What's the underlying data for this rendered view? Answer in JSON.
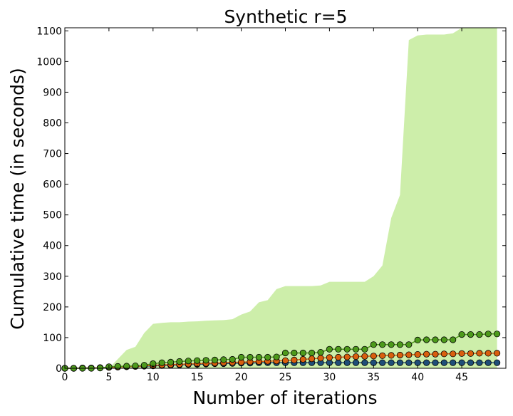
{
  "chart_data": {
    "type": "line",
    "title": "Synthetic r=5",
    "xlabel": "Number of iterations",
    "ylabel": "Cumulative time (in seconds)",
    "xlim": [
      0,
      50
    ],
    "ylim": [
      0,
      1110
    ],
    "xticks": [
      0,
      5,
      10,
      15,
      20,
      25,
      30,
      35,
      40,
      45
    ],
    "yticks": [
      0,
      100,
      200,
      300,
      400,
      500,
      600,
      700,
      800,
      900,
      1000,
      1100
    ],
    "grid": false,
    "legend": "none",
    "x": [
      0,
      1,
      2,
      3,
      4,
      5,
      6,
      7,
      8,
      9,
      10,
      11,
      12,
      13,
      14,
      15,
      16,
      17,
      18,
      19,
      20,
      21,
      22,
      23,
      24,
      25,
      26,
      27,
      28,
      29,
      30,
      31,
      32,
      33,
      34,
      35,
      36,
      37,
      38,
      39,
      40,
      41,
      42,
      43,
      44,
      45,
      46,
      47,
      48,
      49
    ],
    "series": [
      {
        "color": "#1f4e79",
        "values": [
          0,
          0,
          1,
          1,
          2,
          3,
          4,
          5,
          6,
          7,
          8,
          9,
          10,
          11,
          12,
          13,
          14,
          15,
          15,
          16,
          17,
          17,
          18,
          18,
          18,
          18,
          18,
          18,
          18,
          18,
          18,
          18,
          18,
          18,
          18,
          18,
          18,
          18,
          18,
          18,
          18,
          18,
          18,
          18,
          18,
          18,
          18,
          18,
          18,
          18
        ]
      },
      {
        "color": "#d95f0e",
        "values": [
          0,
          0,
          1,
          1,
          2,
          3,
          4,
          5,
          6,
          8,
          10,
          11,
          12,
          13,
          14,
          15,
          16,
          17,
          18,
          19,
          20,
          21,
          22,
          23,
          24,
          25,
          27,
          29,
          31,
          33,
          35,
          36,
          37,
          38,
          39,
          40,
          41,
          42,
          43,
          44,
          45,
          46,
          46,
          47,
          47,
          48,
          48,
          49,
          49,
          49
        ]
      },
      {
        "color": "#4d9a1b",
        "values": [
          0,
          0,
          0,
          0,
          1,
          5,
          6,
          7,
          8,
          10,
          15,
          18,
          20,
          22,
          24,
          25,
          26,
          27,
          28,
          29,
          36,
          36,
          36,
          36,
          37,
          50,
          50,
          50,
          50,
          52,
          62,
          62,
          62,
          62,
          62,
          77,
          77,
          77,
          77,
          77,
          92,
          93,
          93,
          93,
          93,
          110,
          110,
          110,
          112,
          112
        ]
      }
    ],
    "band": {
      "color": "#cdeeaa",
      "upper": [
        0,
        0,
        0,
        0,
        0,
        0,
        30,
        60,
        70,
        115,
        145,
        148,
        150,
        150,
        152,
        153,
        155,
        156,
        157,
        160,
        175,
        185,
        215,
        222,
        258,
        268,
        268,
        268,
        268,
        270,
        282,
        282,
        282,
        282,
        282,
        300,
        335,
        490,
        565,
        1070,
        1085,
        1088,
        1088,
        1088,
        1092,
        1110,
        1110,
        1110,
        1110,
        1110
      ],
      "lower": [
        0,
        0,
        0,
        0,
        0,
        0,
        0,
        0,
        0,
        0,
        0,
        0,
        0,
        0,
        0,
        0,
        0,
        0,
        0,
        0,
        0,
        0,
        0,
        0,
        0,
        0,
        0,
        0,
        0,
        0,
        0,
        0,
        0,
        0,
        0,
        0,
        0,
        0,
        0,
        0,
        0,
        0,
        0,
        0,
        0,
        0,
        0,
        0,
        0,
        0
      ]
    }
  }
}
